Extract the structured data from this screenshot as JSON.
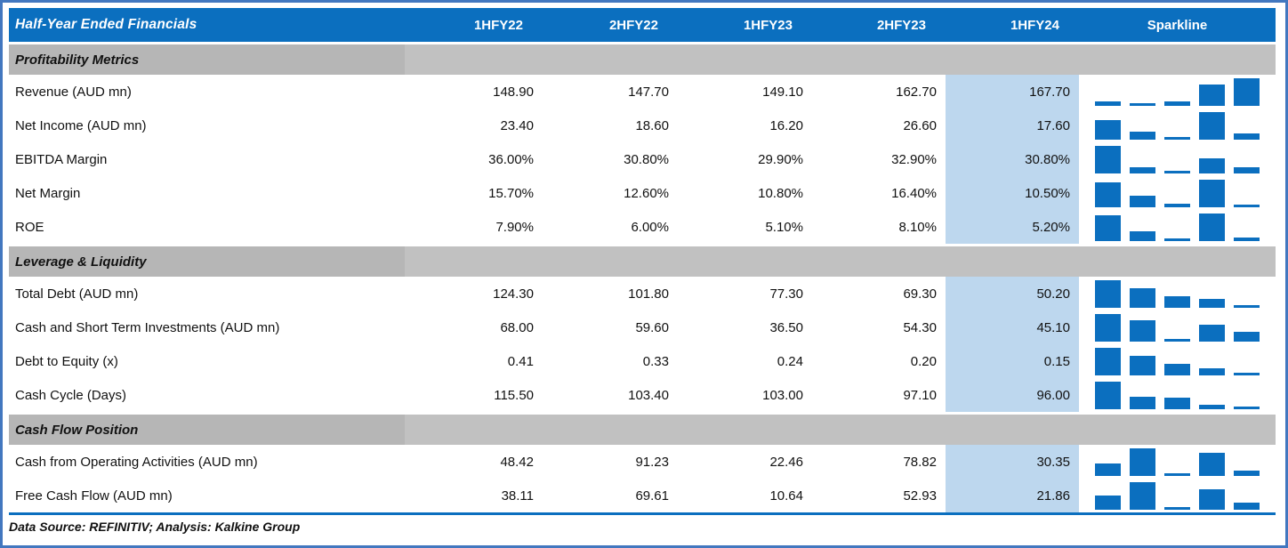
{
  "chart_data": {
    "type": "table",
    "title": "Half-Year Ended Financials",
    "columns": [
      "1HFY22",
      "2HFY22",
      "1HFY23",
      "2HFY23",
      "1HFY24"
    ],
    "sparkline_header": "Sparkline",
    "sparkline_type": "bar",
    "highlighted_column": "1HFY24",
    "sections": [
      {
        "label": "Profitability Metrics",
        "rows": [
          {
            "label": "Revenue (AUD mn)",
            "values": [
              "148.90",
              "147.70",
              "149.10",
              "162.70",
              "167.70"
            ]
          },
          {
            "label": "Net Income (AUD mn)",
            "values": [
              "23.40",
              "18.60",
              "16.20",
              "26.60",
              "17.60"
            ]
          },
          {
            "label": "EBITDA Margin",
            "values": [
              "36.00%",
              "30.80%",
              "29.90%",
              "32.90%",
              "30.80%"
            ]
          },
          {
            "label": "Net Margin",
            "values": [
              "15.70%",
              "12.60%",
              "10.80%",
              "16.40%",
              "10.50%"
            ]
          },
          {
            "label": "ROE",
            "values": [
              "7.90%",
              "6.00%",
              "5.10%",
              "8.10%",
              "5.20%"
            ]
          }
        ]
      },
      {
        "label": "Leverage & Liquidity",
        "rows": [
          {
            "label": "Total Debt (AUD mn)",
            "values": [
              "124.30",
              "101.80",
              "77.30",
              "69.30",
              "50.20"
            ]
          },
          {
            "label": "Cash and Short Term Investments (AUD mn)",
            "values": [
              "68.00",
              "59.60",
              "36.50",
              "54.30",
              "45.10"
            ]
          },
          {
            "label": "Debt to Equity (x)",
            "values": [
              "0.41",
              "0.33",
              "0.24",
              "0.20",
              "0.15"
            ]
          },
          {
            "label": "Cash Cycle (Days)",
            "values": [
              "115.50",
              "103.40",
              "103.00",
              "97.10",
              "96.00"
            ]
          }
        ]
      },
      {
        "label": "Cash Flow Position",
        "rows": [
          {
            "label": "Cash from Operating Activities (AUD mn)",
            "values": [
              "48.42",
              "91.23",
              "22.46",
              "78.82",
              "30.35"
            ]
          },
          {
            "label": "Free Cash Flow (AUD mn)",
            "values": [
              "38.11",
              "69.61",
              "10.64",
              "52.93",
              "21.86"
            ]
          }
        ]
      }
    ]
  },
  "footer": {
    "source_note": "Data Source: REFINITIV; Analysis: Kalkine Group"
  },
  "colors": {
    "header_bg": "#0b6fbf",
    "header_text": "#ffffff",
    "section_label_bg": "#b6b6b6",
    "section_fill_bg": "#c1c1c1",
    "highlight_bg": "#bdd7ee",
    "sparkline_bar": "#0b6fbf",
    "frame_border": "#4277bf",
    "divider": "#0b6fbf",
    "body_text": "#111111"
  }
}
